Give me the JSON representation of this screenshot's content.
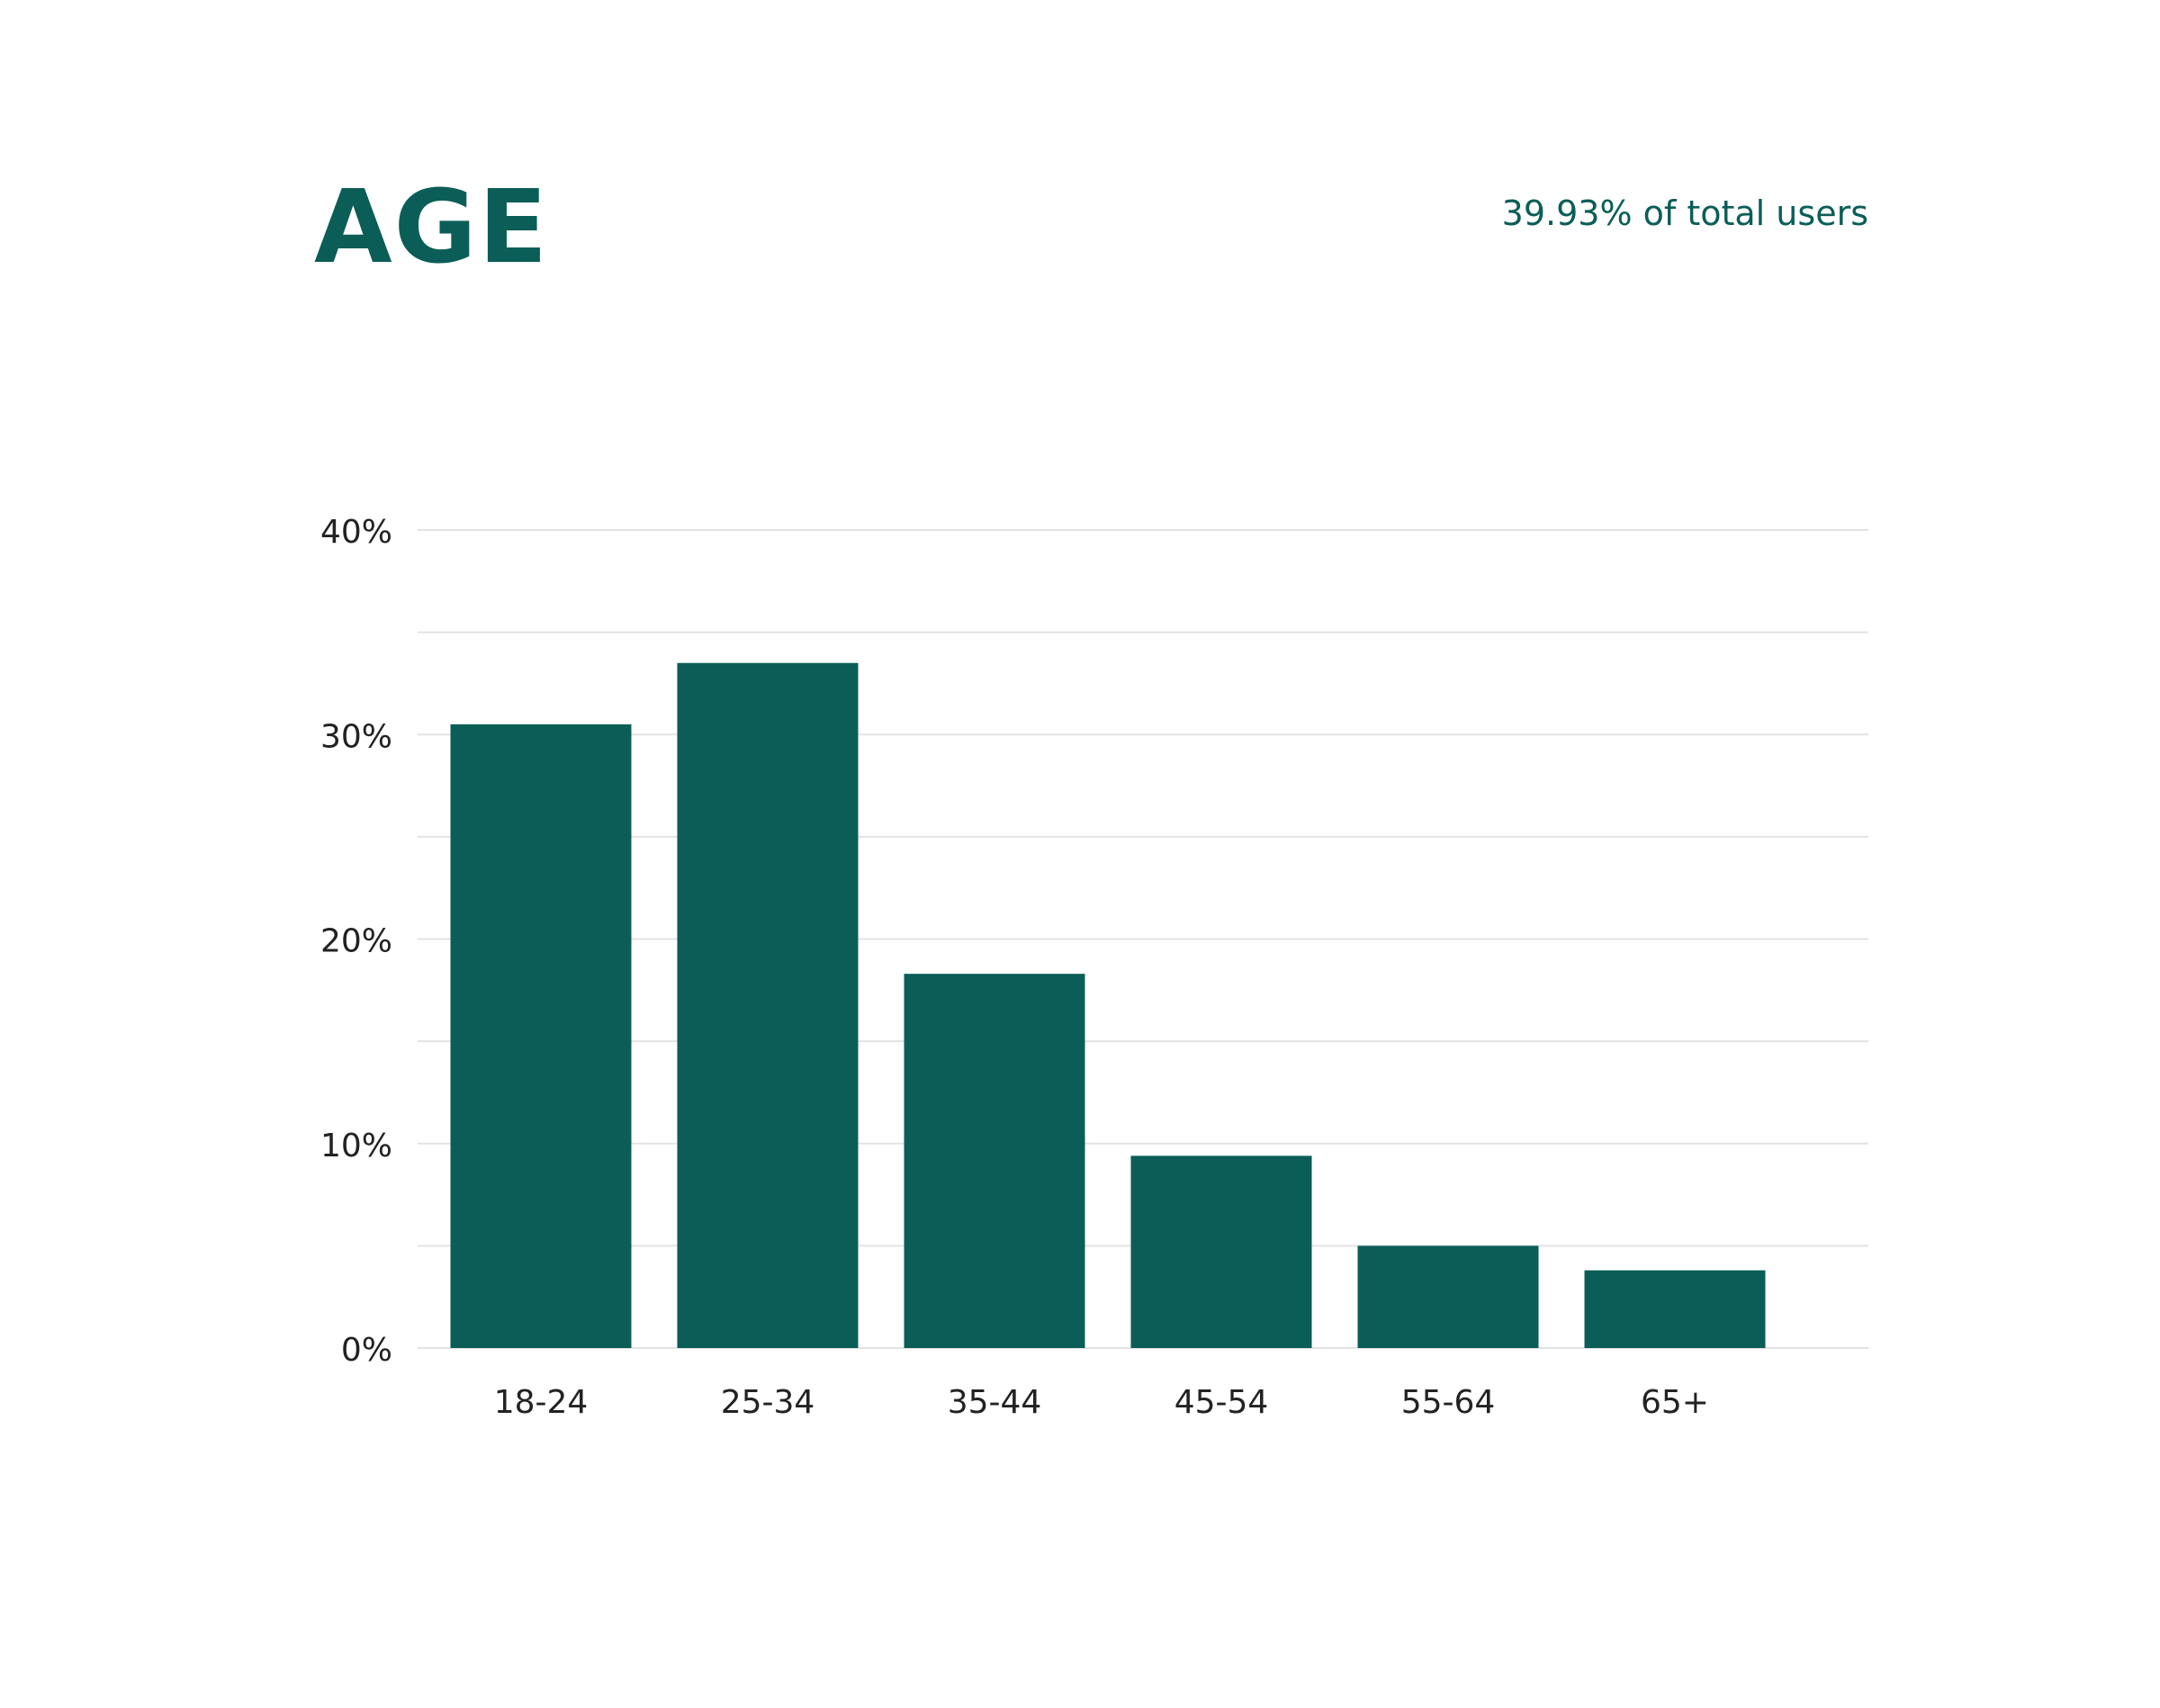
{
  "chart_data": {
    "type": "bar",
    "title": "AGE",
    "subtitle": "39.93% of total users",
    "categories": [
      "18-24",
      "25-34",
      "35-44",
      "45-54",
      "55-64",
      "65+"
    ],
    "values": [
      30.5,
      33.5,
      18.3,
      9.4,
      5.0,
      3.8
    ],
    "color": "#0b5e57",
    "ylim": [
      0,
      40
    ],
    "yticks": [
      {
        "value": 0,
        "label": "0%"
      },
      {
        "value": 10,
        "label": "10%"
      },
      {
        "value": 20,
        "label": "20%"
      },
      {
        "value": 30,
        "label": "30%"
      },
      {
        "value": 40,
        "label": "40%"
      }
    ],
    "minor_yticks": [
      5,
      15,
      25,
      35
    ],
    "grid": true
  }
}
